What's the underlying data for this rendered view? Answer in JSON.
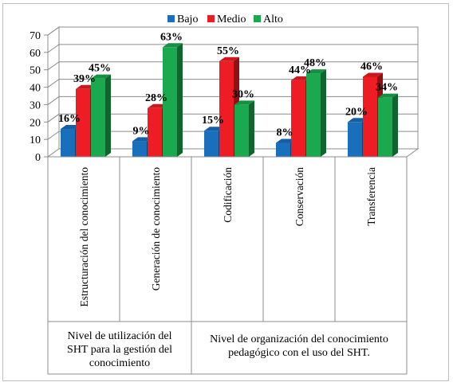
{
  "chart_data": {
    "type": "bar",
    "categories": [
      "Estructuración del conocimiento",
      "Generación de conocimiento",
      "Codificación",
      "Conservación",
      "Transferencia"
    ],
    "series": [
      {
        "name": "Bajo",
        "values": [
          16,
          9,
          15,
          8,
          20
        ],
        "labels": [
          "16%",
          "9%",
          "15%",
          "8%",
          "20%"
        ]
      },
      {
        "name": "Medio",
        "values": [
          39,
          28,
          55,
          44,
          46
        ],
        "labels": [
          "39%",
          "28%",
          "55%",
          "44%",
          "46%"
        ]
      },
      {
        "name": "Alto",
        "values": [
          45,
          63,
          30,
          48,
          34
        ],
        "labels": [
          "45%",
          "63%",
          "30%",
          "48%",
          "34%"
        ]
      }
    ],
    "groups": [
      {
        "label": "Nivel de utilización del SHT para la gestión del conocimiento",
        "lines": [
          "Nivel de utilización del",
          "SHT para la gestión del",
          "conocimiento"
        ],
        "categories": 2
      },
      {
        "label": "Nivel de organización del conocimiento pedagógico con el uso del SHT.",
        "lines": [
          "Nivel de organización del conocimiento",
          "pedagógico con el uso del SHT."
        ],
        "categories": 3
      }
    ],
    "ylim": [
      0,
      70
    ],
    "yticks": [
      0,
      10,
      20,
      30,
      40,
      50,
      60,
      70
    ],
    "grid": true,
    "legend": "top-center",
    "colors": {
      "Bajo": "#1a6fbd",
      "Medio": "#ee1c24",
      "Alto": "#1aa94f"
    }
  }
}
